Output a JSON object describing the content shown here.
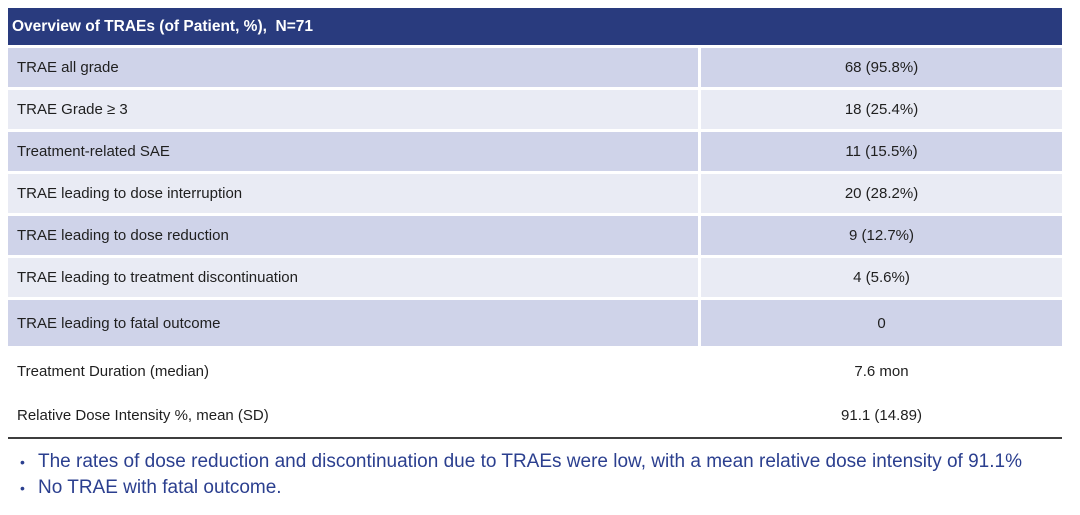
{
  "table": {
    "header": "Overview of TRAEs (of Patient, %),  N=71",
    "rows": [
      {
        "label": "TRAE all grade",
        "value": "68 (95.8%)"
      },
      {
        "label": "TRAE Grade ≥ 3",
        "value": "18 (25.4%)"
      },
      {
        "label": "Treatment-related SAE",
        "value": "11 (15.5%)"
      },
      {
        "label": "TRAE leading to dose interruption",
        "value": "20 (28.2%)"
      },
      {
        "label": "TRAE leading to dose reduction",
        "value": "9 (12.7%)"
      },
      {
        "label": "TRAE leading to treatment discontinuation",
        "value": "4 (5.6%)"
      },
      {
        "label": "TRAE leading to fatal outcome",
        "value": "0"
      },
      {
        "label": "Treatment Duration (median)",
        "value": "7.6 mon"
      },
      {
        "label": "Relative Dose Intensity %, mean (SD)",
        "value": "91.1 (14.89)"
      }
    ]
  },
  "bullets": {
    "glyph": "•",
    "items": [
      "The rates of dose reduction and discontinuation due to TRAEs were low, with a mean relative dose intensity of 91.1%",
      "No TRAE with fatal outcome."
    ]
  },
  "colors": {
    "header_bg": "#293B7E",
    "header_text": "#FFFFFF",
    "row_shade_dark": "#CFD3E9",
    "row_shade_light": "#E9EBF4",
    "body_text": "#1F1F1F",
    "bullet_text": "#2B3F8F",
    "rule": "#3D3D3D"
  }
}
